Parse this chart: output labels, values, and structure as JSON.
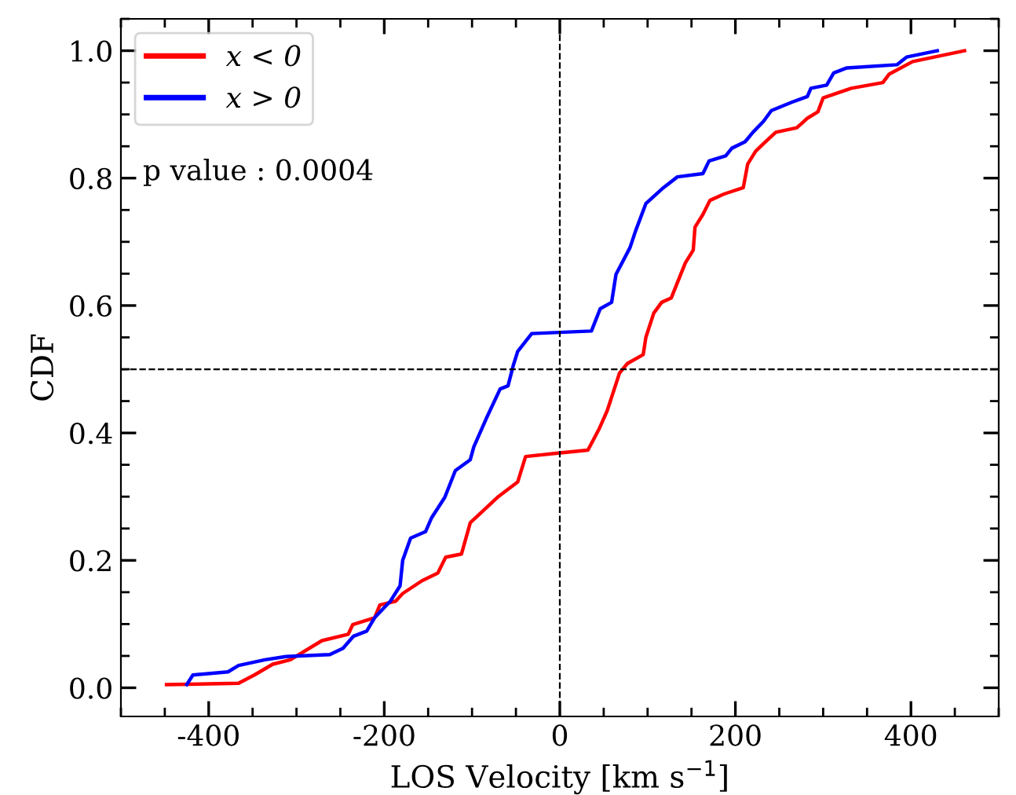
{
  "chart_data": {
    "type": "line",
    "xlabel": "LOS Velocity [km s$^{−1}$]",
    "ylabel": "CDF",
    "xlim": [
      -500,
      500
    ],
    "ylim": [
      -0.045,
      1.05
    ],
    "xticks": [
      -400,
      -200,
      0,
      200,
      400
    ],
    "yticks": [
      {
        "value": 0,
        "label": "0.0"
      },
      {
        "value": 0.2,
        "label": "0.2"
      },
      {
        "value": 0.4,
        "label": "0.4"
      },
      {
        "value": 0.6,
        "label": "0.6"
      },
      {
        "value": 0.8,
        "label": "0.8"
      },
      {
        "value": 1,
        "label": "1.0"
      }
    ],
    "grid": false,
    "legend": "top left",
    "line_style": "solid",
    "marker": "none",
    "annotations": [
      "p value : 0.0004"
    ],
    "ref_lines": [
      {
        "axis": "x",
        "value": 0,
        "color": "#000000",
        "line_style": "dashed"
      },
      {
        "axis": "y",
        "value": 0.5,
        "color": "#000000",
        "line_style": "dashed"
      }
    ],
    "series": [
      {
        "name": "x < 0",
        "color": "#ff0000",
        "x": [
          -448,
          -366,
          -348,
          -327,
          -307,
          -271,
          -241,
          -236,
          -211,
          -205,
          -187,
          -179,
          -157,
          -139,
          -130,
          -112,
          -102,
          -71,
          -48,
          -39,
          -4,
          32,
          45,
          54,
          68,
          77,
          95,
          98,
          107,
          116,
          127,
          143,
          152,
          154,
          163,
          171,
          187,
          209,
          214,
          223,
          232,
          246,
          270,
          282,
          294,
          300,
          332,
          368,
          375,
          402,
          461
        ],
        "values": [
          0.005,
          0.007,
          0.02,
          0.037,
          0.044,
          0.074,
          0.084,
          0.099,
          0.11,
          0.13,
          0.136,
          0.148,
          0.168,
          0.18,
          0.205,
          0.21,
          0.259,
          0.299,
          0.323,
          0.363,
          0.368,
          0.373,
          0.407,
          0.435,
          0.494,
          0.509,
          0.523,
          0.55,
          0.588,
          0.605,
          0.612,
          0.667,
          0.687,
          0.723,
          0.743,
          0.765,
          0.775,
          0.785,
          0.822,
          0.842,
          0.854,
          0.872,
          0.879,
          0.894,
          0.904,
          0.926,
          0.941,
          0.95,
          0.963,
          0.983,
          1.0
        ]
      },
      {
        "name": "x > 0",
        "color": "#0000ff",
        "x": [
          -425,
          -418,
          -378,
          -366,
          -336,
          -312,
          -262,
          -247,
          -235,
          -220,
          -211,
          -193,
          -182,
          -179,
          -170,
          -153,
          -146,
          -131,
          -119,
          -102,
          -98,
          -84,
          -68,
          -59,
          -53,
          -48,
          -32,
          36,
          46,
          59,
          64,
          80,
          86,
          98,
          118,
          134,
          163,
          170,
          189,
          196,
          211,
          220,
          232,
          241,
          264,
          282,
          286,
          304,
          312,
          327,
          384,
          395,
          430
        ],
        "values": [
          0.005,
          0.02,
          0.025,
          0.035,
          0.044,
          0.049,
          0.052,
          0.062,
          0.081,
          0.089,
          0.11,
          0.136,
          0.16,
          0.2,
          0.235,
          0.245,
          0.267,
          0.299,
          0.341,
          0.358,
          0.378,
          0.422,
          0.469,
          0.474,
          0.506,
          0.528,
          0.556,
          0.56,
          0.595,
          0.605,
          0.649,
          0.691,
          0.716,
          0.76,
          0.785,
          0.802,
          0.807,
          0.827,
          0.835,
          0.847,
          0.857,
          0.872,
          0.889,
          0.906,
          0.919,
          0.928,
          0.941,
          0.946,
          0.965,
          0.973,
          0.978,
          0.99,
          1.0
        ]
      }
    ]
  }
}
